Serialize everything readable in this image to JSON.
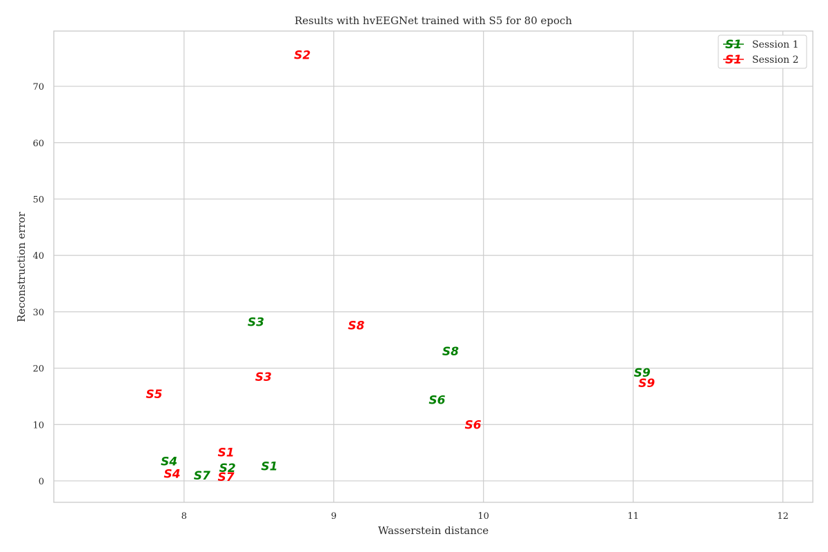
{
  "chart_data": {
    "type": "scatter",
    "title": "Results with hvEEGNet trained with S5 for 80 epoch",
    "xlabel": "Wasserstein distance",
    "ylabel": "Reconstruction error",
    "xlim": [
      7.13,
      12.2
    ],
    "ylim": [
      -3.8,
      79.8
    ],
    "xticks": [
      8,
      9,
      10,
      11,
      12
    ],
    "yticks": [
      0,
      10,
      20,
      30,
      40,
      50,
      60,
      70
    ],
    "grid": true,
    "legend_position": "top-right",
    "legend_marker": "S1",
    "series": [
      {
        "name": "Session 1",
        "color": "#008000",
        "points": [
          {
            "label": "S1",
            "x": 8.57,
            "y": 2.6
          },
          {
            "label": "S2",
            "x": 8.29,
            "y": 2.3
          },
          {
            "label": "S3",
            "x": 8.48,
            "y": 28.2
          },
          {
            "label": "S4",
            "x": 7.9,
            "y": 3.5
          },
          {
            "label": "S6",
            "x": 9.69,
            "y": 14.4
          },
          {
            "label": "S7",
            "x": 8.12,
            "y": 1.0
          },
          {
            "label": "S8",
            "x": 9.78,
            "y": 23.0
          },
          {
            "label": "S9",
            "x": 11.06,
            "y": 19.2
          }
        ]
      },
      {
        "name": "Session 2",
        "color": "#ff0000",
        "points": [
          {
            "label": "S1",
            "x": 8.28,
            "y": 5.1
          },
          {
            "label": "S2",
            "x": 8.79,
            "y": 75.6
          },
          {
            "label": "S3",
            "x": 8.53,
            "y": 18.5
          },
          {
            "label": "S4",
            "x": 7.92,
            "y": 1.3
          },
          {
            "label": "S5",
            "x": 7.8,
            "y": 15.4
          },
          {
            "label": "S6",
            "x": 9.93,
            "y": 10.0
          },
          {
            "label": "S7",
            "x": 8.28,
            "y": 0.7
          },
          {
            "label": "S8",
            "x": 9.15,
            "y": 27.6
          },
          {
            "label": "S9",
            "x": 11.09,
            "y": 17.4
          }
        ]
      }
    ]
  }
}
